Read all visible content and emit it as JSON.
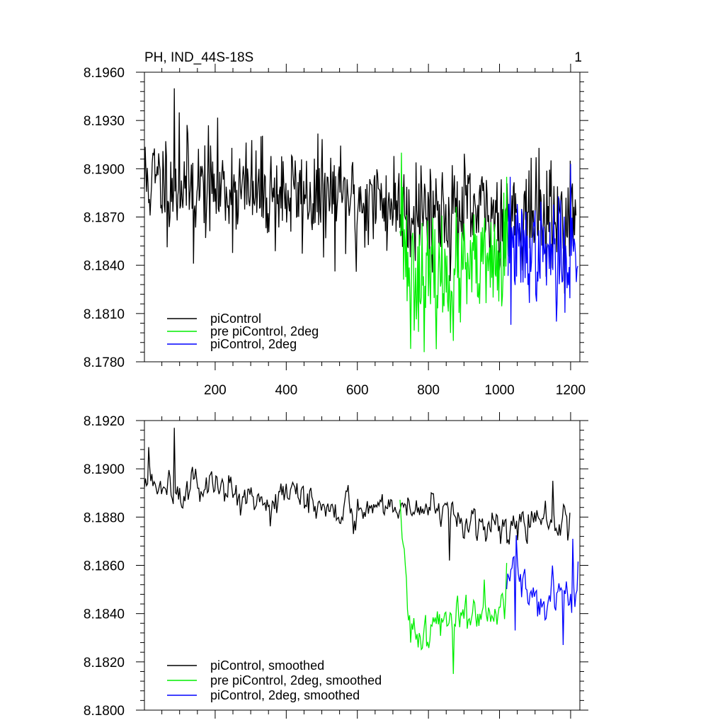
{
  "page": {
    "title": "PH, IND_44S-18S",
    "panel_number": "1"
  },
  "colors": {
    "black": "#000000",
    "green": "#00ee00",
    "blue": "#0000ff"
  },
  "chart_data": [
    {
      "type": "line",
      "title": "PH, IND_44S-18S",
      "xlabel": "",
      "ylabel": "",
      "xlim": [
        1,
        1226
      ],
      "ylim": [
        8.178,
        8.196
      ],
      "xticks": [
        200,
        400,
        600,
        800,
        1000,
        1200
      ],
      "xtick_labels": [
        "200",
        "400",
        "600",
        "800",
        "1000",
        "1200"
      ],
      "yticks": [
        8.178,
        8.181,
        8.184,
        8.187,
        8.19,
        8.193,
        8.196
      ],
      "ytick_labels": [
        "8.1780",
        "8.1810",
        "8.1840",
        "8.1870",
        "8.1900",
        "8.1930",
        "8.1960"
      ],
      "legend_position": "bottom-left",
      "series": [
        {
          "name": "piControl",
          "color": "#000000",
          "x_start": 1,
          "x_end": 1216,
          "step": 2,
          "seed": 11,
          "noise_std": 0.0016,
          "trend_points": [
            [
              1,
              8.1893
            ],
            [
              300,
              8.1886
            ],
            [
              600,
              8.188
            ],
            [
              720,
              8.1878
            ],
            [
              900,
              8.1872
            ],
            [
              1100,
              8.1872
            ],
            [
              1216,
              8.187
            ]
          ],
          "extremes": [
            [
              85,
              8.195
            ],
            [
              100,
              8.1935
            ],
            [
              140,
              8.1841
            ],
            [
              598,
              8.1836
            ],
            [
              750,
              8.1845
            ],
            [
              1200,
              8.1905
            ]
          ]
        },
        {
          "name": "pre piControl, 2deg",
          "color": "#00ee00",
          "x_start": 720,
          "x_end": 1026,
          "step": 2,
          "seed": 23,
          "noise_std": 0.0017,
          "trend_points": [
            [
              720,
              8.188
            ],
            [
              740,
              8.184
            ],
            [
              800,
              8.183
            ],
            [
              900,
              8.1835
            ],
            [
              1000,
              8.184
            ],
            [
              1026,
              8.1845
            ]
          ],
          "extremes": [
            [
              725,
              8.191
            ],
            [
              750,
              8.1788
            ],
            [
              870,
              8.1793
            ],
            [
              1020,
              8.1895
            ]
          ]
        },
        {
          "name": "piControl, 2deg",
          "color": "#0000ff",
          "x_start": 1024,
          "x_end": 1221,
          "step": 2,
          "seed": 37,
          "noise_std": 0.0015,
          "trend_points": [
            [
              1024,
              8.185
            ],
            [
              1100,
              8.1848
            ],
            [
              1221,
              8.1845
            ]
          ],
          "extremes": [
            [
              1032,
              8.1803
            ],
            [
              1160,
              8.1805
            ],
            [
              1200,
              8.1903
            ],
            [
              1030,
              8.1895
            ]
          ]
        }
      ]
    },
    {
      "type": "line",
      "title": "",
      "xlabel": "",
      "ylabel": "",
      "xlim": [
        1,
        1226
      ],
      "ylim": [
        8.18,
        8.192
      ],
      "xticks": [
        200,
        400,
        600,
        800,
        1000,
        1200
      ],
      "xtick_labels": [],
      "yticks": [
        8.18,
        8.182,
        8.184,
        8.186,
        8.188,
        8.19,
        8.192
      ],
      "ytick_labels": [
        "8.1800",
        "8.1820",
        "8.1840",
        "8.1860",
        "8.1880",
        "8.1900",
        "8.1920"
      ],
      "legend_position": "bottom-left",
      "series": [
        {
          "name": "piControl, smoothed",
          "color": "#000000",
          "x_start": 1,
          "x_end": 1200,
          "step": 3,
          "seed": 5,
          "noise_std": 0.00045,
          "trend_points": [
            [
              1,
              8.1893
            ],
            [
              100,
              8.1895
            ],
            [
              300,
              8.189
            ],
            [
              500,
              8.1886
            ],
            [
              650,
              8.1884
            ],
            [
              720,
              8.1886
            ],
            [
              900,
              8.1878
            ],
            [
              1100,
              8.1878
            ],
            [
              1200,
              8.1876
            ]
          ],
          "extremes": [
            [
              85,
              8.1917
            ],
            [
              12,
              8.1909
            ],
            [
              590,
              8.1873
            ],
            [
              860,
              8.1862
            ],
            [
              1150,
              8.1895
            ]
          ]
        },
        {
          "name": "pre piControl, 2deg, smoothed",
          "color": "#00ee00",
          "x_start": 720,
          "x_end": 1020,
          "step": 3,
          "seed": 41,
          "noise_std": 0.0006,
          "trend_points": [
            [
              720,
              8.188
            ],
            [
              745,
              8.1835
            ],
            [
              800,
              8.1833
            ],
            [
              900,
              8.184
            ],
            [
              1000,
              8.1848
            ],
            [
              1020,
              8.1852
            ]
          ],
          "extremes": [
            [
              870,
              8.1815
            ],
            [
              1020,
              8.1861
            ],
            [
              750,
              8.1828
            ]
          ]
        },
        {
          "name": "piControl, 2deg, smoothed",
          "color": "#0000ff",
          "x_start": 1020,
          "x_end": 1221,
          "step": 3,
          "seed": 59,
          "noise_std": 0.0006,
          "trend_points": [
            [
              1020,
              8.1855
            ],
            [
              1100,
              8.1847
            ],
            [
              1221,
              8.1848
            ]
          ],
          "extremes": [
            [
              1205,
              8.1871
            ],
            [
              1180,
              8.1827
            ],
            [
              1045,
              8.1833
            ]
          ]
        }
      ]
    }
  ]
}
